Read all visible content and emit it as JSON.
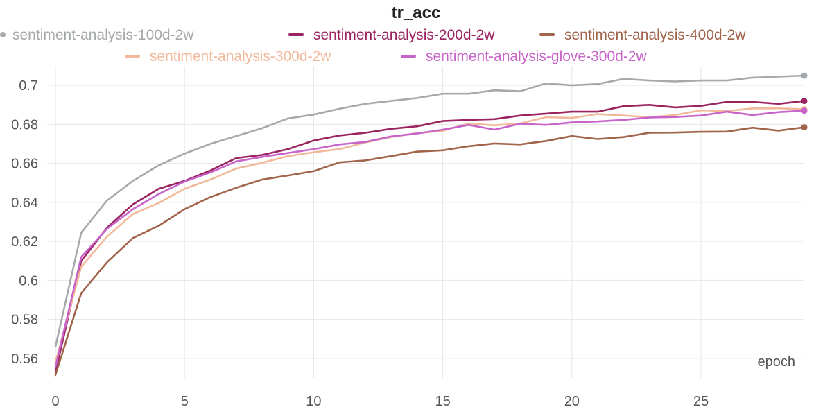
{
  "chart_data": {
    "type": "line",
    "title": "tr_acc",
    "xlabel": "epoch",
    "ylabel": "",
    "xlim": [
      0,
      29
    ],
    "ylim": [
      0.55,
      0.71
    ],
    "x_ticks": [
      0,
      5,
      10,
      15,
      20,
      25
    ],
    "y_ticks": [
      0.56,
      0.58,
      0.6,
      0.62,
      0.64,
      0.66,
      0.68,
      0.7
    ],
    "y_tick_labels": [
      "0.56",
      "0.58",
      "0.6",
      "0.62",
      "0.64",
      "0.66",
      "0.68",
      "0.7"
    ],
    "grid": true,
    "legend_position": "top",
    "x": [
      0,
      1,
      2,
      3,
      4,
      5,
      6,
      7,
      8,
      9,
      10,
      11,
      12,
      13,
      14,
      15,
      16,
      17,
      18,
      19,
      20,
      21,
      22,
      23,
      24,
      25,
      26,
      27,
      28,
      29
    ],
    "series": [
      {
        "name": "sentiment-analysis-100d-2w",
        "color": "#a6a9ab",
        "values": [
          0.566,
          0.6245,
          0.641,
          0.651,
          0.659,
          0.665,
          0.67,
          0.674,
          0.678,
          0.683,
          0.685,
          0.688,
          0.6905,
          0.692,
          0.6935,
          0.6957,
          0.6957,
          0.6975,
          0.697,
          0.701,
          0.7,
          0.7007,
          0.7033,
          0.7025,
          0.702,
          0.7025,
          0.7025,
          0.704,
          0.7045,
          0.705
        ]
      },
      {
        "name": "sentiment-analysis-200d-2w",
        "color": "#9b2360",
        "values": [
          0.553,
          0.61,
          0.627,
          0.639,
          0.647,
          0.651,
          0.6563,
          0.6627,
          0.6643,
          0.6673,
          0.6717,
          0.6743,
          0.6757,
          0.6777,
          0.679,
          0.6817,
          0.6823,
          0.6827,
          0.6845,
          0.6855,
          0.6865,
          0.6865,
          0.6893,
          0.69,
          0.6887,
          0.6895,
          0.6915,
          0.6915,
          0.6905,
          0.692
        ]
      },
      {
        "name": "sentiment-analysis-400d-2w",
        "color": "#a0644a",
        "values": [
          0.5515,
          0.5935,
          0.6093,
          0.6217,
          0.628,
          0.6365,
          0.6427,
          0.6475,
          0.6517,
          0.6538,
          0.656,
          0.6605,
          0.6615,
          0.6637,
          0.666,
          0.6667,
          0.6688,
          0.6702,
          0.6697,
          0.6715,
          0.674,
          0.6725,
          0.6735,
          0.6757,
          0.6758,
          0.6762,
          0.6763,
          0.6783,
          0.6768,
          0.6785
        ]
      },
      {
        "name": "sentiment-analysis-300d-2w",
        "color": "#f2b89a",
        "values": [
          0.558,
          0.607,
          0.6225,
          0.634,
          0.6397,
          0.647,
          0.6517,
          0.6573,
          0.6603,
          0.6637,
          0.6657,
          0.6673,
          0.6707,
          0.6735,
          0.6755,
          0.6767,
          0.6805,
          0.6795,
          0.6805,
          0.6837,
          0.6833,
          0.6853,
          0.6845,
          0.6837,
          0.6848,
          0.6872,
          0.6868,
          0.6882,
          0.6882,
          0.6878
        ]
      },
      {
        "name": "sentiment-analysis-glove-300d-2w",
        "color": "#c764c9",
        "values": [
          0.5555,
          0.612,
          0.6265,
          0.6365,
          0.6443,
          0.6507,
          0.6553,
          0.661,
          0.6633,
          0.6653,
          0.6673,
          0.6697,
          0.671,
          0.6738,
          0.6753,
          0.6773,
          0.6797,
          0.6773,
          0.6803,
          0.6797,
          0.681,
          0.6815,
          0.6823,
          0.6835,
          0.6838,
          0.6845,
          0.6865,
          0.6848,
          0.6863,
          0.687
        ]
      }
    ]
  }
}
